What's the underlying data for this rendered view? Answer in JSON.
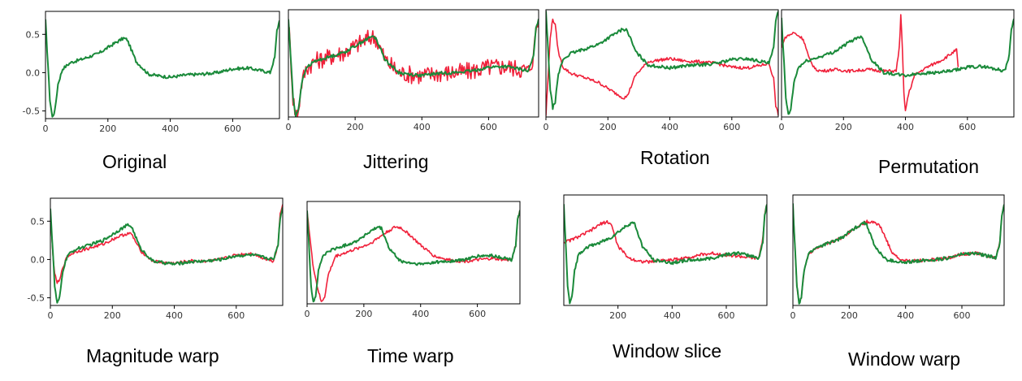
{
  "colors": {
    "original": "#1a8a3a",
    "augmented": "#f0203a",
    "frame": "#000000"
  },
  "chart_data": [
    {
      "type": "line",
      "caption": "Original",
      "xlim": [
        0,
        750
      ],
      "ylim": [
        -0.6,
        0.8
      ],
      "xticks": [
        0,
        200,
        400,
        600
      ],
      "yticks": [
        -0.5,
        0.0,
        0.5
      ],
      "xtick_labels": [
        "0",
        "200",
        "400",
        "600"
      ],
      "ytick_labels": [
        "-0.5",
        "0.0",
        "0.5"
      ],
      "series": [
        {
          "role": "original",
          "x": [
            0,
            8,
            14,
            22,
            30,
            40,
            55,
            80,
            120,
            170,
            220,
            250,
            262,
            290,
            330,
            360,
            400,
            450,
            500,
            550,
            600,
            650,
            700,
            720,
            735,
            742,
            750
          ],
          "y": [
            0.68,
            0.1,
            -0.35,
            -0.58,
            -0.5,
            -0.15,
            0.05,
            0.13,
            0.18,
            0.25,
            0.38,
            0.45,
            0.43,
            0.15,
            -0.02,
            -0.04,
            -0.06,
            -0.03,
            -0.02,
            0.0,
            0.05,
            0.06,
            0.02,
            0.0,
            0.2,
            0.55,
            0.68
          ],
          "noise": 0.02
        }
      ]
    },
    {
      "type": "line",
      "caption": "Jittering",
      "xlim": [
        0,
        750
      ],
      "ylim": [
        -0.6,
        0.8
      ],
      "xticks": [
        0,
        200,
        400,
        600
      ],
      "yticks": [],
      "xtick_labels": [
        "0",
        "200",
        "400",
        "600"
      ],
      "ytick_labels": [],
      "series": [
        {
          "role": "augmented",
          "x": [
            0,
            8,
            14,
            22,
            30,
            40,
            55,
            80,
            120,
            170,
            220,
            250,
            262,
            290,
            330,
            360,
            400,
            450,
            500,
            550,
            600,
            650,
            700,
            720,
            735,
            742,
            750
          ],
          "y": [
            0.68,
            0.1,
            -0.35,
            -0.58,
            -0.5,
            -0.15,
            0.05,
            0.13,
            0.18,
            0.25,
            0.38,
            0.45,
            0.43,
            0.15,
            -0.02,
            -0.04,
            -0.06,
            -0.03,
            -0.02,
            0.0,
            0.05,
            0.06,
            0.02,
            0.0,
            0.2,
            0.55,
            0.68
          ],
          "noise": 0.12
        },
        {
          "role": "original",
          "x": [
            0,
            8,
            14,
            22,
            30,
            40,
            55,
            80,
            120,
            170,
            220,
            250,
            262,
            290,
            330,
            360,
            400,
            450,
            500,
            550,
            600,
            650,
            700,
            720,
            735,
            742,
            750
          ],
          "y": [
            0.68,
            0.1,
            -0.35,
            -0.58,
            -0.5,
            -0.15,
            0.05,
            0.13,
            0.18,
            0.25,
            0.38,
            0.45,
            0.43,
            0.15,
            -0.02,
            -0.04,
            -0.06,
            -0.03,
            -0.02,
            0.0,
            0.05,
            0.06,
            0.02,
            0.0,
            0.2,
            0.55,
            0.68
          ],
          "noise": 0.02
        }
      ]
    },
    {
      "type": "line",
      "caption": "Rotation",
      "xlim": [
        0,
        750
      ],
      "ylim": [
        -0.7,
        0.7
      ],
      "xticks": [
        0,
        200,
        400,
        600
      ],
      "yticks": [],
      "xtick_labels": [
        "0",
        "200",
        "400",
        "600"
      ],
      "ytick_labels": [],
      "series": [
        {
          "role": "augmented",
          "x": [
            0,
            8,
            14,
            22,
            30,
            40,
            55,
            80,
            120,
            170,
            220,
            250,
            262,
            290,
            330,
            360,
            400,
            450,
            500,
            550,
            600,
            650,
            700,
            720,
            735,
            742,
            750
          ],
          "y": [
            -0.68,
            -0.1,
            0.35,
            0.58,
            0.5,
            0.15,
            -0.05,
            -0.13,
            -0.18,
            -0.25,
            -0.38,
            -0.45,
            -0.43,
            -0.15,
            0.02,
            0.04,
            0.06,
            0.03,
            0.02,
            0.0,
            -0.05,
            -0.06,
            -0.02,
            0.0,
            -0.2,
            -0.55,
            -0.68
          ],
          "noise": 0.02
        },
        {
          "role": "original",
          "x": [
            0,
            8,
            14,
            22,
            30,
            40,
            55,
            80,
            120,
            170,
            220,
            250,
            262,
            290,
            330,
            360,
            400,
            450,
            500,
            550,
            600,
            650,
            700,
            720,
            735,
            742,
            750
          ],
          "y": [
            0.68,
            0.1,
            -0.35,
            -0.58,
            -0.5,
            -0.15,
            0.05,
            0.13,
            0.18,
            0.25,
            0.38,
            0.45,
            0.43,
            0.15,
            -0.02,
            -0.04,
            -0.06,
            -0.03,
            -0.02,
            0.0,
            0.05,
            0.06,
            0.02,
            0.0,
            0.2,
            0.55,
            0.68
          ],
          "noise": 0.02
        }
      ]
    },
    {
      "type": "line",
      "caption": "Permutation",
      "xlim": [
        0,
        750
      ],
      "ylim": [
        -0.6,
        0.8
      ],
      "xticks": [
        0,
        200,
        400,
        600
      ],
      "yticks": [],
      "xtick_labels": [
        "0",
        "200",
        "400",
        "600"
      ],
      "ytick_labels": [],
      "series": [
        {
          "role": "augmented",
          "x": [
            0,
            5,
            15,
            40,
            70,
            90,
            110,
            130,
            170,
            220,
            280,
            330,
            370,
            380,
            385,
            390,
            395,
            400,
            410,
            430,
            470,
            520,
            560,
            565,
            570
          ],
          "y": [
            0.3,
            0.38,
            0.45,
            0.5,
            0.42,
            0.15,
            0.02,
            0.0,
            0.02,
            0.0,
            0.02,
            0.0,
            0.0,
            0.3,
            0.72,
            0.3,
            -0.3,
            -0.52,
            -0.3,
            -0.05,
            0.05,
            0.15,
            0.26,
            0.28,
            0.05
          ],
          "noise": 0.02
        },
        {
          "role": "original",
          "x": [
            0,
            8,
            14,
            22,
            30,
            40,
            55,
            80,
            120,
            170,
            220,
            250,
            262,
            290,
            330,
            360,
            400,
            450,
            500,
            550,
            600,
            650,
            700,
            720,
            735,
            742,
            750
          ],
          "y": [
            0.68,
            0.1,
            -0.35,
            -0.58,
            -0.5,
            -0.15,
            0.05,
            0.13,
            0.18,
            0.25,
            0.38,
            0.45,
            0.43,
            0.15,
            -0.02,
            -0.04,
            -0.06,
            -0.03,
            -0.02,
            0.0,
            0.05,
            0.06,
            0.02,
            0.0,
            0.2,
            0.55,
            0.68
          ],
          "noise": 0.02
        }
      ]
    },
    {
      "type": "line",
      "caption": "Magnitude warp",
      "xlim": [
        0,
        750
      ],
      "ylim": [
        -0.6,
        0.8
      ],
      "xticks": [
        0,
        200,
        400,
        600
      ],
      "yticks": [
        -0.5,
        0.0,
        0.5
      ],
      "xtick_labels": [
        "0",
        "200",
        "400",
        "600"
      ],
      "ytick_labels": [
        "-0.5",
        "0.0",
        "0.5"
      ],
      "series": [
        {
          "role": "augmented",
          "x": [
            0,
            8,
            14,
            22,
            30,
            40,
            55,
            80,
            120,
            170,
            220,
            250,
            262,
            290,
            330,
            360,
            400,
            450,
            500,
            550,
            600,
            650,
            700,
            720,
            735,
            742,
            750
          ],
          "y": [
            0.6,
            0.08,
            -0.2,
            -0.3,
            -0.28,
            -0.1,
            0.04,
            0.1,
            0.14,
            0.2,
            0.3,
            0.34,
            0.33,
            0.12,
            -0.02,
            -0.04,
            -0.05,
            -0.02,
            -0.02,
            0.0,
            0.06,
            0.08,
            0.0,
            -0.02,
            0.2,
            0.6,
            0.72
          ],
          "noise": 0.02
        },
        {
          "role": "original",
          "x": [
            0,
            8,
            14,
            22,
            30,
            40,
            55,
            80,
            120,
            170,
            220,
            250,
            262,
            290,
            330,
            360,
            400,
            450,
            500,
            550,
            600,
            650,
            700,
            720,
            735,
            742,
            750
          ],
          "y": [
            0.68,
            0.1,
            -0.35,
            -0.58,
            -0.5,
            -0.15,
            0.05,
            0.13,
            0.18,
            0.25,
            0.38,
            0.45,
            0.43,
            0.15,
            -0.02,
            -0.04,
            -0.06,
            -0.03,
            -0.02,
            0.0,
            0.05,
            0.06,
            0.02,
            0.0,
            0.2,
            0.55,
            0.68
          ],
          "noise": 0.02
        }
      ]
    },
    {
      "type": "line",
      "caption": "Time warp",
      "xlim": [
        0,
        750
      ],
      "ylim": [
        -0.6,
        0.8
      ],
      "xticks": [
        0,
        200,
        400,
        600
      ],
      "yticks": [],
      "xtick_labels": [
        "0",
        "200",
        "400",
        "600"
      ],
      "ytick_labels": [],
      "series": [
        {
          "role": "augmented",
          "x": [
            0,
            10,
            20,
            35,
            50,
            62,
            75,
            100,
            150,
            220,
            280,
            310,
            330,
            360,
            400,
            450,
            500,
            550,
            600,
            650,
            700,
            720,
            735,
            742,
            750
          ],
          "y": [
            0.68,
            0.3,
            -0.05,
            -0.35,
            -0.58,
            -0.5,
            -0.2,
            0.05,
            0.12,
            0.22,
            0.38,
            0.45,
            0.44,
            0.35,
            0.2,
            0.05,
            0.0,
            -0.02,
            0.0,
            0.02,
            0.0,
            0.0,
            0.2,
            0.55,
            0.68
          ],
          "noise": 0.02
        },
        {
          "role": "original",
          "x": [
            0,
            8,
            14,
            22,
            30,
            40,
            55,
            80,
            120,
            170,
            220,
            250,
            262,
            290,
            330,
            360,
            400,
            450,
            500,
            550,
            600,
            650,
            700,
            720,
            735,
            742,
            750
          ],
          "y": [
            0.68,
            0.1,
            -0.35,
            -0.58,
            -0.5,
            -0.15,
            0.05,
            0.13,
            0.18,
            0.25,
            0.38,
            0.45,
            0.43,
            0.15,
            -0.02,
            -0.04,
            -0.06,
            -0.03,
            -0.02,
            0.0,
            0.05,
            0.06,
            0.02,
            0.0,
            0.2,
            0.55,
            0.68
          ],
          "noise": 0.02
        }
      ]
    },
    {
      "type": "line",
      "caption": "Window slice",
      "xlim": [
        0,
        750
      ],
      "ylim": [
        -0.6,
        0.8
      ],
      "xticks": [
        200,
        400,
        600
      ],
      "yticks": [],
      "xtick_labels": [
        "200",
        "400",
        "600"
      ],
      "ytick_labels": [],
      "series": [
        {
          "role": "augmented",
          "x": [
            0,
            20,
            60,
            100,
            140,
            160,
            175,
            200,
            240,
            280,
            320,
            360,
            400,
            450,
            500,
            550,
            600,
            650,
            700,
            720,
            735,
            742,
            750
          ],
          "y": [
            0.2,
            0.22,
            0.28,
            0.35,
            0.44,
            0.46,
            0.43,
            0.15,
            0.0,
            -0.04,
            -0.05,
            -0.03,
            -0.02,
            0.0,
            0.04,
            0.06,
            0.04,
            0.02,
            0.0,
            0.0,
            0.25,
            0.55,
            0.68
          ],
          "noise": 0.02
        },
        {
          "role": "original",
          "x": [
            0,
            8,
            14,
            22,
            30,
            40,
            55,
            80,
            120,
            170,
            220,
            250,
            262,
            290,
            330,
            360,
            400,
            450,
            500,
            550,
            600,
            650,
            700,
            720,
            735,
            742,
            750
          ],
          "y": [
            0.68,
            0.1,
            -0.35,
            -0.58,
            -0.5,
            -0.15,
            0.05,
            0.13,
            0.18,
            0.25,
            0.38,
            0.45,
            0.43,
            0.15,
            -0.02,
            -0.04,
            -0.06,
            -0.03,
            -0.02,
            0.0,
            0.05,
            0.06,
            0.02,
            0.0,
            0.2,
            0.55,
            0.68
          ],
          "noise": 0.02
        }
      ]
    },
    {
      "type": "line",
      "caption": "Window warp",
      "xlim": [
        0,
        750
      ],
      "ylim": [
        -0.6,
        0.8
      ],
      "xticks": [
        0,
        200,
        400,
        600
      ],
      "yticks": [],
      "xtick_labels": [
        "0",
        "200",
        "400",
        "600"
      ],
      "ytick_labels": [],
      "series": [
        {
          "role": "augmented",
          "x": [
            0,
            8,
            14,
            22,
            30,
            40,
            55,
            80,
            120,
            170,
            220,
            260,
            290,
            310,
            330,
            350,
            380,
            420,
            450,
            500,
            550,
            600,
            650,
            700,
            720,
            735,
            742,
            750
          ],
          "y": [
            0.68,
            0.1,
            -0.35,
            -0.58,
            -0.5,
            -0.15,
            0.05,
            0.13,
            0.18,
            0.25,
            0.38,
            0.46,
            0.46,
            0.4,
            0.25,
            0.08,
            -0.02,
            -0.04,
            -0.03,
            -0.02,
            0.0,
            0.05,
            0.06,
            0.02,
            0.0,
            0.2,
            0.55,
            0.68
          ],
          "noise": 0.02
        },
        {
          "role": "original",
          "x": [
            0,
            8,
            14,
            22,
            30,
            40,
            55,
            80,
            120,
            170,
            220,
            250,
            262,
            290,
            330,
            360,
            400,
            450,
            500,
            550,
            600,
            650,
            700,
            720,
            735,
            742,
            750
          ],
          "y": [
            0.68,
            0.1,
            -0.35,
            -0.58,
            -0.5,
            -0.15,
            0.05,
            0.13,
            0.18,
            0.25,
            0.38,
            0.45,
            0.43,
            0.15,
            -0.02,
            -0.04,
            -0.06,
            -0.03,
            -0.02,
            0.0,
            0.05,
            0.06,
            0.02,
            0.0,
            0.2,
            0.55,
            0.68
          ],
          "noise": 0.02
        }
      ]
    }
  ]
}
